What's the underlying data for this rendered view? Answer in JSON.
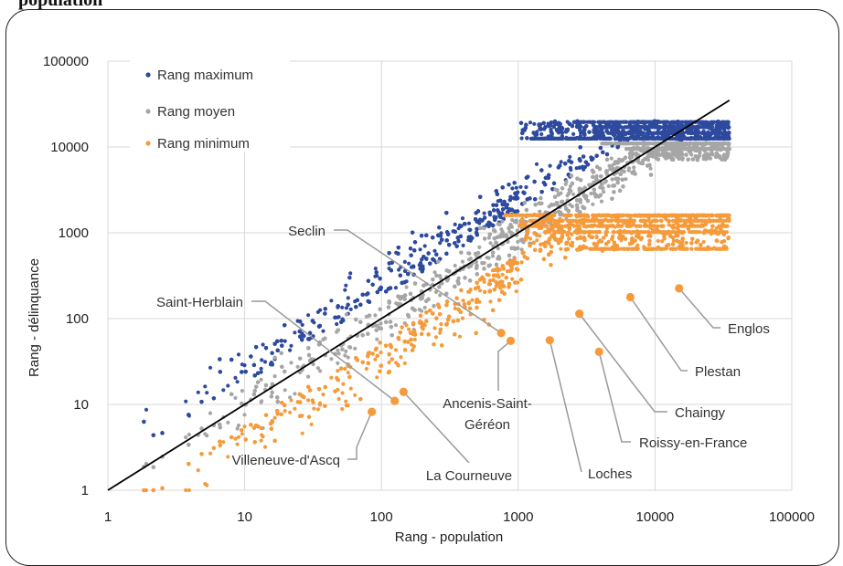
{
  "heading": "population",
  "chart_data": {
    "type": "scatter",
    "title": "",
    "xlabel": "Rang - population",
    "ylabel": "Rang - délinquance",
    "xscale": "log",
    "yscale": "log",
    "xlim": [
      1,
      100000
    ],
    "ylim": [
      1,
      100000
    ],
    "x_ticks": [
      "1",
      "10",
      "100",
      "1000",
      "10000",
      "100000"
    ],
    "y_ticks": [
      "1",
      "10",
      "100",
      "1000",
      "10000",
      "100000"
    ],
    "grid": true,
    "legend_position": "top-left",
    "series": [
      {
        "name": "Rang maximum",
        "color": "#2e4a9e",
        "shape": "band above diagonal, saturating near 12000–20000"
      },
      {
        "name": "Rang moyen",
        "color": "#a6a6a6",
        "shape": "band around diagonal, saturating near 10000"
      },
      {
        "name": "Rang minimum",
        "color": "#f59b3c",
        "shape": "band below diagonal, saturating near 600–1600"
      }
    ],
    "reference_line": {
      "from": [
        1,
        1
      ],
      "to": [
        35000,
        35000
      ],
      "color": "#000000"
    },
    "highlighted_points": [
      {
        "label": "Seclin",
        "x": 750,
        "y": 68
      },
      {
        "label": "Saint-Herblain",
        "x": 125,
        "y": 11
      },
      {
        "label": "Villeneuve-d'Ascq",
        "x": 85,
        "y": 8.2
      },
      {
        "label": "La Courneuve",
        "x": 145,
        "y": 14
      },
      {
        "label": "Ancenis-Saint-Géréon",
        "x": 880,
        "y": 55
      },
      {
        "label": "Loches",
        "x": 1700,
        "y": 56
      },
      {
        "label": "Chaingy",
        "x": 2800,
        "y": 114
      },
      {
        "label": "Roissy-en-France",
        "x": 3900,
        "y": 41
      },
      {
        "label": "Plestan",
        "x": 6600,
        "y": 178
      },
      {
        "label": "Englos",
        "x": 15000,
        "y": 225
      }
    ]
  }
}
